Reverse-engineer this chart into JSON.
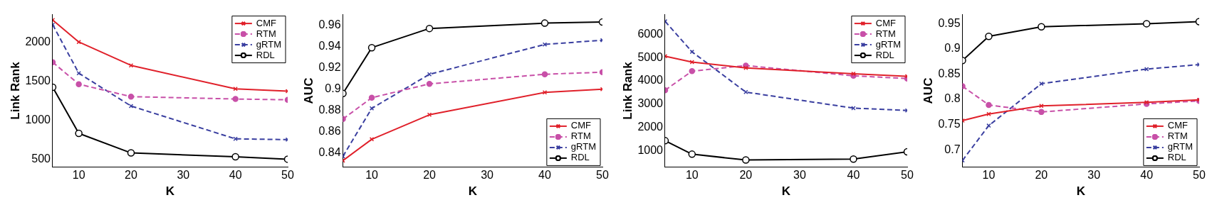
{
  "chart_data": [
    {
      "type": "line",
      "xlabel": "K",
      "ylabel": "Link Rank",
      "x": [
        5,
        10,
        20,
        40,
        50
      ],
      "xlim": [
        5,
        50
      ],
      "xticks": [
        10,
        20,
        30,
        40,
        50
      ],
      "ylim": [
        400,
        2350
      ],
      "yticks": [
        500,
        1000,
        1500,
        2000
      ],
      "legend": "top right",
      "grid": false,
      "series": [
        {
          "name": "CMF",
          "color": "#e0202a",
          "marker": "cross",
          "line_style": "solid",
          "values": [
            2280,
            2000,
            1700,
            1400,
            1370
          ]
        },
        {
          "name": "RTM",
          "color": "#c850a8",
          "marker": "circle",
          "line_style": "dashed",
          "values": [
            1740,
            1460,
            1300,
            1270,
            1260
          ]
        },
        {
          "name": "gRTM",
          "color": "#3a3fa0",
          "marker": "cross",
          "line_style": "dashed",
          "values": [
            2220,
            1600,
            1180,
            760,
            750
          ]
        },
        {
          "name": "RDL",
          "color": "#000000",
          "marker": "circle",
          "line_style": "solid",
          "values": [
            1420,
            830,
            580,
            530,
            500
          ]
        }
      ]
    },
    {
      "type": "line",
      "xlabel": "K",
      "ylabel": "AUC",
      "x": [
        5,
        10,
        20,
        40,
        50
      ],
      "xlim": [
        5,
        50
      ],
      "xticks": [
        10,
        20,
        30,
        40,
        50
      ],
      "ylim": [
        0.827,
        0.97
      ],
      "yticks": [
        0.84,
        0.86,
        0.88,
        0.9,
        0.92,
        0.94,
        0.96
      ],
      "legend": "bottom right",
      "grid": false,
      "series": [
        {
          "name": "CMF",
          "color": "#e0202a",
          "marker": "cross",
          "line_style": "solid",
          "values": [
            0.833,
            0.853,
            0.876,
            0.897,
            0.9
          ]
        },
        {
          "name": "RTM",
          "color": "#c850a8",
          "marker": "circle",
          "line_style": "dashed",
          "values": [
            0.872,
            0.892,
            0.905,
            0.914,
            0.916
          ]
        },
        {
          "name": "gRTM",
          "color": "#3a3fa0",
          "marker": "cross",
          "line_style": "dashed",
          "values": [
            0.837,
            0.882,
            0.914,
            0.942,
            0.946
          ]
        },
        {
          "name": "RDL",
          "color": "#000000",
          "marker": "circle",
          "line_style": "solid",
          "values": [
            0.896,
            0.939,
            0.957,
            0.962,
            0.963
          ]
        }
      ]
    },
    {
      "type": "line",
      "xlabel": "K",
      "ylabel": "Link Rank",
      "x": [
        5,
        10,
        20,
        40,
        50
      ],
      "xlim": [
        5,
        50
      ],
      "xticks": [
        10,
        20,
        30,
        40,
        50
      ],
      "ylim": [
        300,
        6850
      ],
      "yticks": [
        1000,
        2000,
        3000,
        4000,
        5000,
        6000
      ],
      "legend": "top right",
      "grid": false,
      "series": [
        {
          "name": "CMF",
          "color": "#e0202a",
          "marker": "cross",
          "line_style": "solid",
          "values": [
            5060,
            4810,
            4560,
            4310,
            4200
          ]
        },
        {
          "name": "RTM",
          "color": "#c850a8",
          "marker": "circle",
          "line_style": "dashed",
          "values": [
            3600,
            4420,
            4660,
            4220,
            4100
          ]
        },
        {
          "name": "gRTM",
          "color": "#3a3fa0",
          "marker": "cross",
          "line_style": "dashed",
          "values": [
            6560,
            5250,
            3520,
            2830,
            2730
          ]
        },
        {
          "name": "RDL",
          "color": "#000000",
          "marker": "circle",
          "line_style": "solid",
          "values": [
            1430,
            850,
            600,
            640,
            950
          ]
        }
      ]
    },
    {
      "type": "line",
      "xlabel": "K",
      "ylabel": "AUC",
      "x": [
        5,
        10,
        20,
        40,
        50
      ],
      "xlim": [
        5,
        50
      ],
      "xticks": [
        10,
        20,
        30,
        40,
        50
      ],
      "ylim": [
        0.666,
        0.968
      ],
      "yticks": [
        0.7,
        0.75,
        0.8,
        0.85,
        0.9,
        0.95
      ],
      "legend": "bottom right",
      "grid": false,
      "series": [
        {
          "name": "CMF",
          "color": "#e0202a",
          "marker": "cross",
          "line_style": "solid",
          "values": [
            0.758,
            0.771,
            0.787,
            0.794,
            0.799
          ]
        },
        {
          "name": "RTM",
          "color": "#c850a8",
          "marker": "circle",
          "line_style": "dashed",
          "values": [
            0.826,
            0.789,
            0.775,
            0.791,
            0.797
          ]
        },
        {
          "name": "gRTM",
          "color": "#3a3fa0",
          "marker": "cross",
          "line_style": "dashed",
          "values": [
            0.679,
            0.748,
            0.831,
            0.86,
            0.869
          ]
        },
        {
          "name": "RDL",
          "color": "#000000",
          "marker": "circle",
          "line_style": "solid",
          "values": [
            0.877,
            0.925,
            0.944,
            0.95,
            0.954
          ]
        }
      ]
    }
  ]
}
